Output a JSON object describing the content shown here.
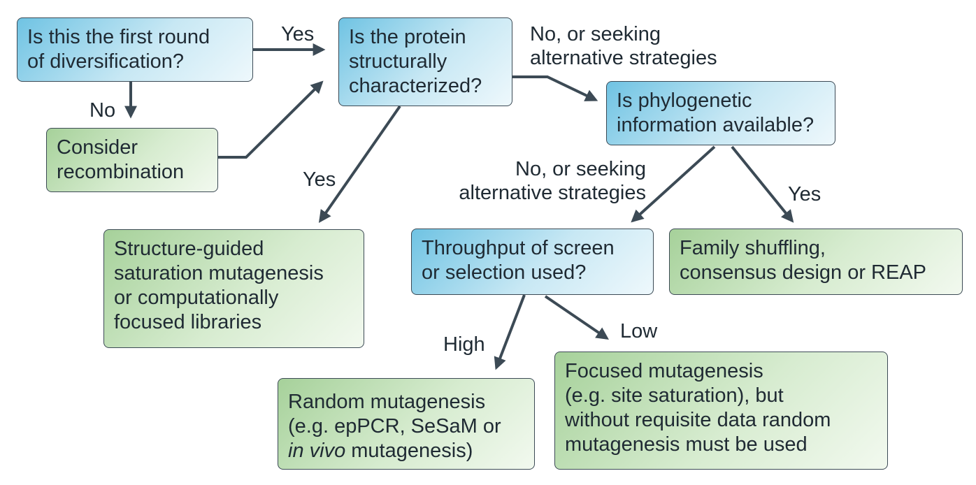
{
  "nodes": {
    "first_round": {
      "lines": [
        "Is this the first round",
        "of diversification?"
      ]
    },
    "structural": {
      "lines": [
        "Is the protein",
        "structurally",
        "characterized?"
      ]
    },
    "recombination": {
      "lines": [
        "Consider",
        "recombination"
      ]
    },
    "phylogenetic": {
      "lines": [
        "Is phylogenetic",
        "information available?"
      ]
    },
    "structure_guided": {
      "lines": [
        "Structure-guided",
        "saturation mutagenesis",
        "or computationally",
        "focused libraries"
      ]
    },
    "throughput": {
      "lines": [
        "Throughput of screen",
        "or selection used?"
      ]
    },
    "family_shuffling": {
      "lines": [
        "Family shuffling,",
        "consensus design or REAP"
      ]
    },
    "random": {
      "lines": [
        "Random mutagenesis",
        "(e.g. epPCR, SeSaM or",
        " mutagenesis)"
      ],
      "italic": "in vivo"
    },
    "focused": {
      "lines": [
        "Focused mutagenesis",
        "(e.g. site saturation), but",
        "without requisite data random",
        "mutagenesis must be used"
      ]
    }
  },
  "labels": {
    "yes_first": "Yes",
    "no_first": "No",
    "no_struct": [
      "No, or seeking",
      "alternative strategies"
    ],
    "yes_struct": "Yes",
    "no_phylo": [
      "No, or seeking",
      "alternative strategies"
    ],
    "yes_phylo": "Yes",
    "high": "High",
    "low": "Low"
  },
  "colors": {
    "decision_fill": "#6fc3e3",
    "outcome_fill": "#a6d19a",
    "arrow": "#3c4a55"
  }
}
